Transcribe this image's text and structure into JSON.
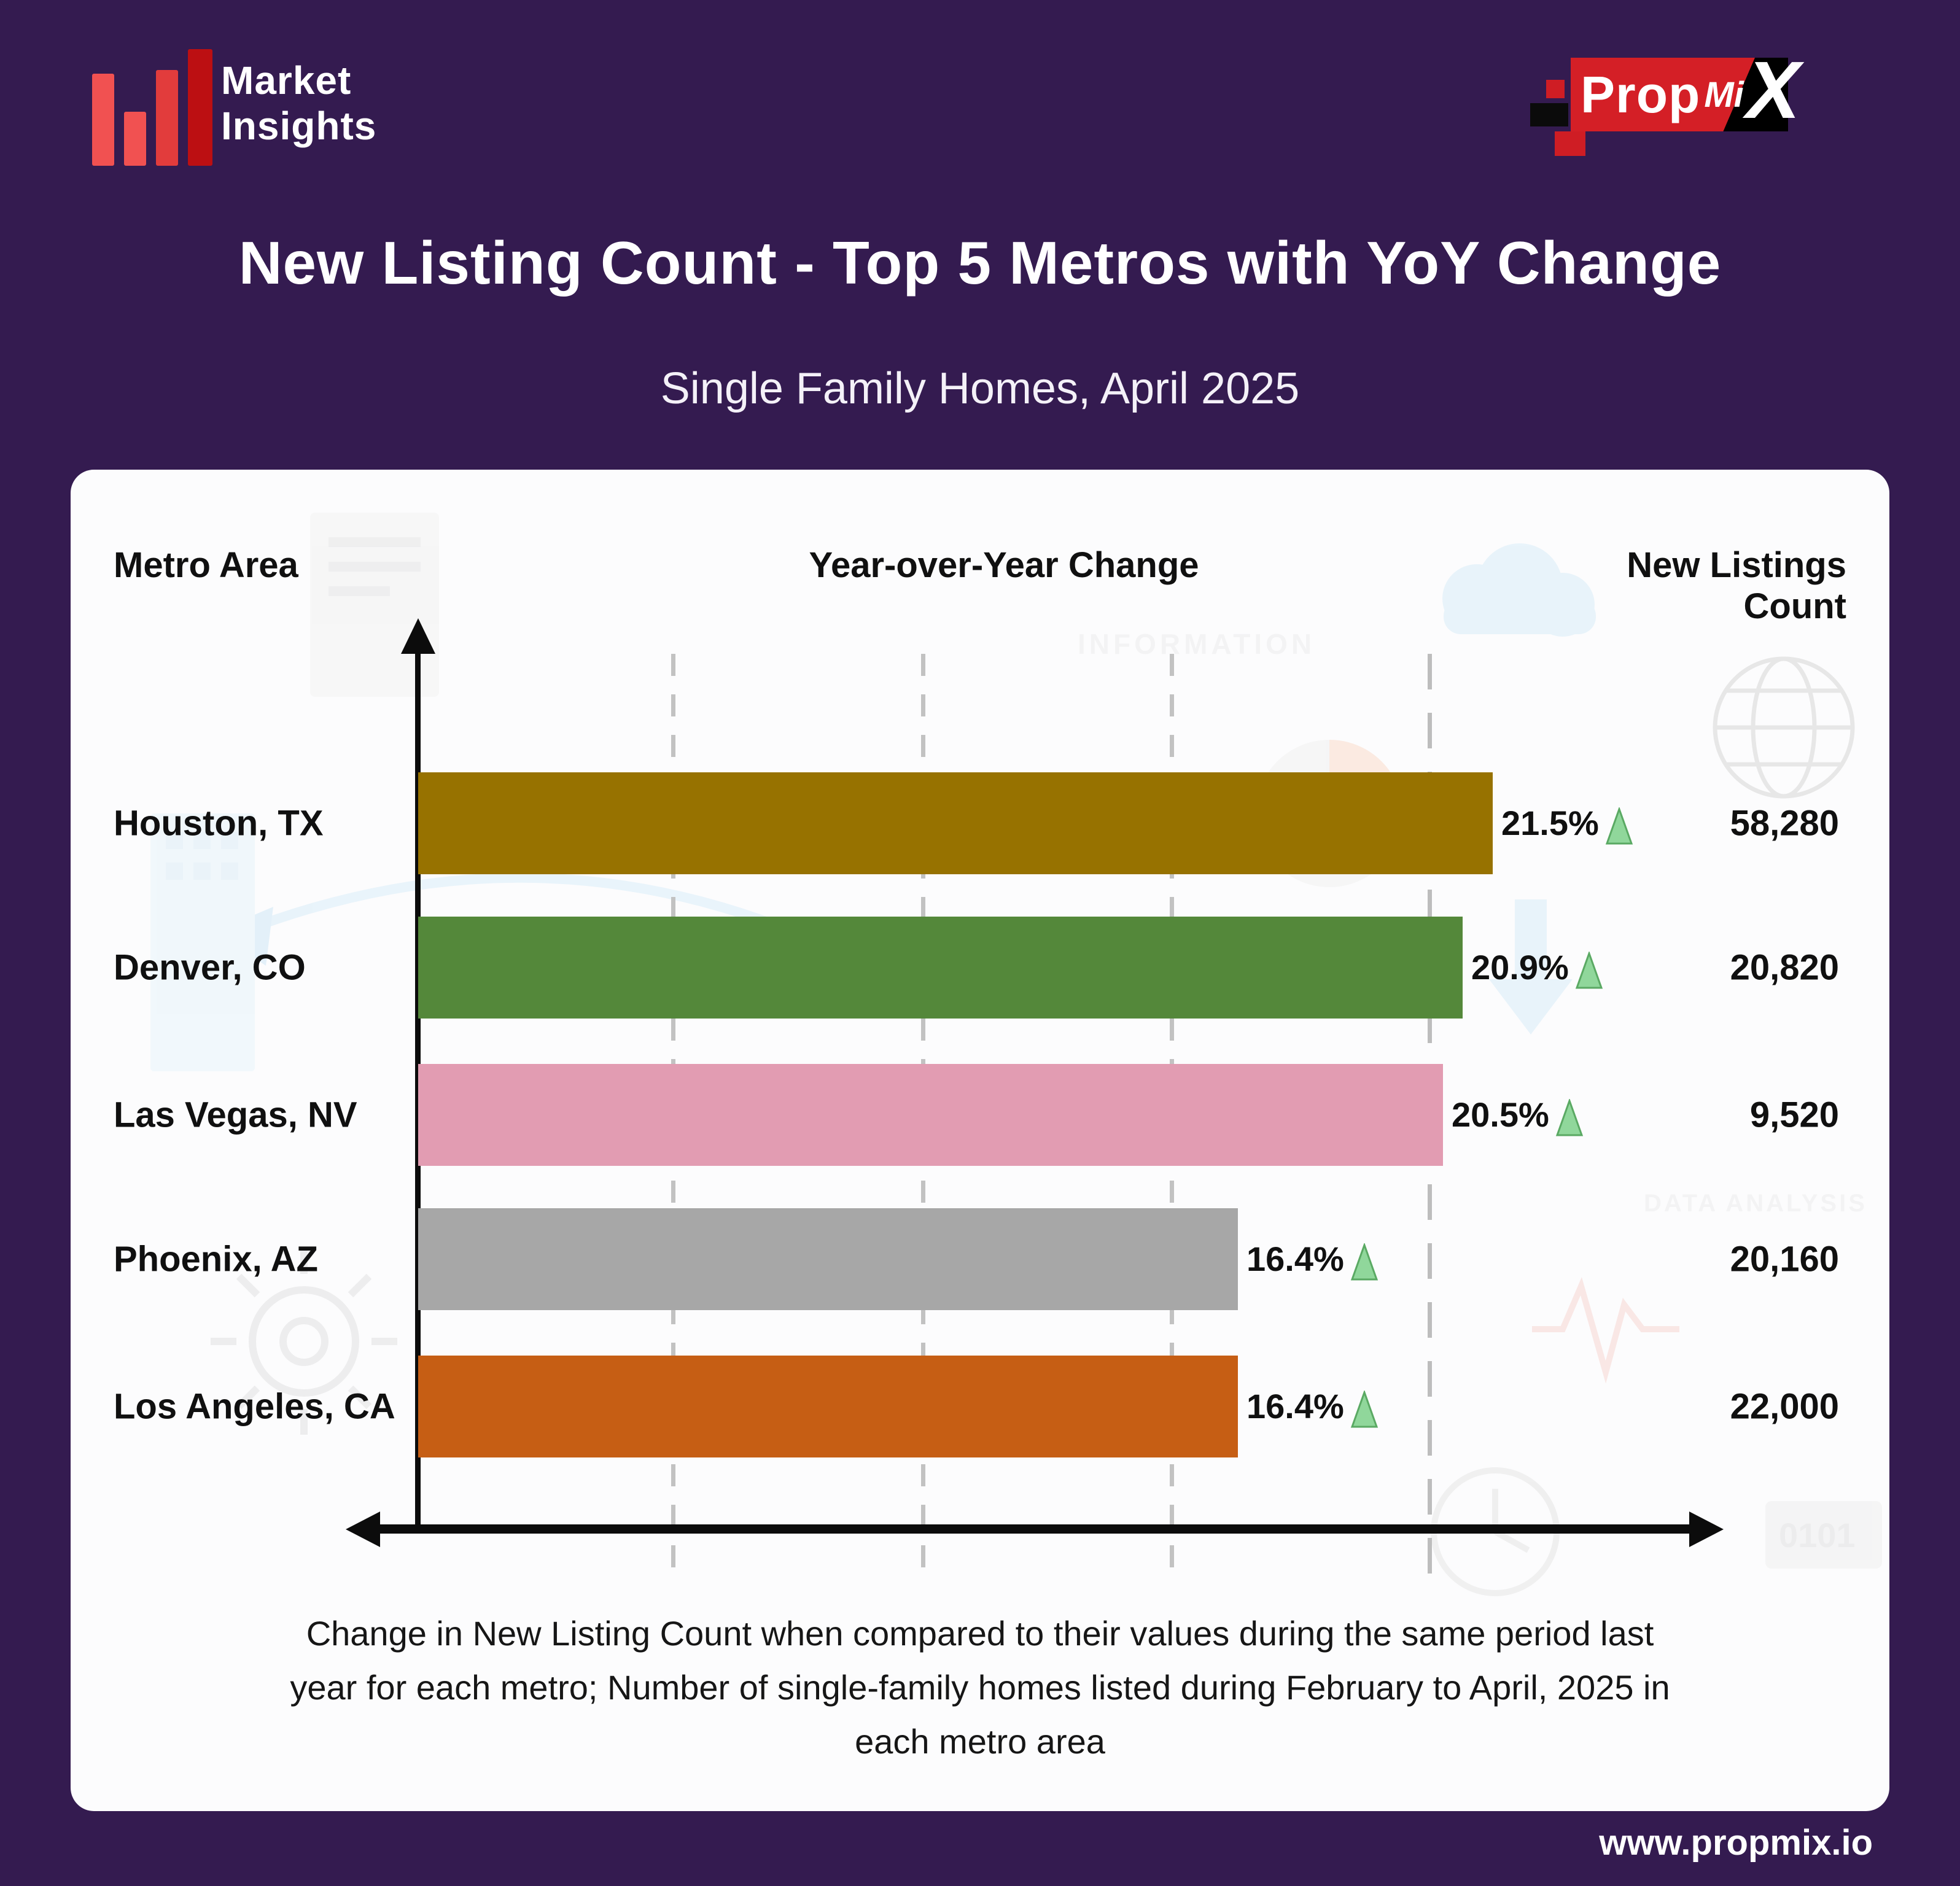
{
  "page": {
    "background_color": "#341b50",
    "footer_url": "www.propmix.io"
  },
  "header": {
    "brand": {
      "line1": "Market",
      "line2": "Insights"
    },
    "propmix_logo": {
      "prop": "Prop",
      "mi": "Mi",
      "x": "X"
    },
    "title": "New Listing Count - Top 5 Metros with YoY Change",
    "subtitle": "Single Family Homes, April 2025"
  },
  "chart_card": {
    "columns": {
      "metro": "Metro Area",
      "yoy": "Year-over-Year Change",
      "count": "New Listings Count"
    },
    "caption": "Change in New Listing Count when compared to their values during the same period last year for each metro; Number of single-family homes listed during February to April, 2025 in each metro area",
    "watermark_labels": {
      "label1": "INFORMATION",
      "label2": "DATA ANALYSIS"
    }
  },
  "chart_data": {
    "type": "bar",
    "orientation": "horizontal",
    "title": "New Listing Count - Top 5 Metros with YoY Change",
    "subtitle": "Single Family Homes, April 2025",
    "bar_length_encodes": "yoy_percent",
    "grid": "dashed-vertical",
    "legend": "none",
    "trend_icon_fill": "#90d79b",
    "trend_icon_stroke": "#5aa963",
    "categories": [
      "Houston, TX",
      "Denver, CO",
      "Las Vegas, NV",
      "Phoenix, AZ",
      "Los Angeles, CA"
    ],
    "series": [
      {
        "name": "Year-over-Year Change (%)",
        "values": [
          21.5,
          20.9,
          20.5,
          16.4,
          16.4
        ]
      },
      {
        "name": "New Listings Count",
        "values": [
          58280,
          20820,
          9520,
          20160,
          22000
        ]
      }
    ],
    "rows": [
      {
        "metro": "Houston, TX",
        "yoy_label": "21.5%",
        "yoy_value": 21.5,
        "direction": "up",
        "count_label": "58,280",
        "count_value": 58280,
        "bar_color": "#977200"
      },
      {
        "metro": "Denver, CO",
        "yoy_label": "20.9%",
        "yoy_value": 20.9,
        "direction": "up",
        "count_label": "20,820",
        "count_value": 20820,
        "bar_color": "#54883a"
      },
      {
        "metro": "Las Vegas, NV",
        "yoy_label": "20.5%",
        "yoy_value": 20.5,
        "direction": "up",
        "count_label": "9,520",
        "count_value": 9520,
        "bar_color": "#e29cb2"
      },
      {
        "metro": "Phoenix, AZ",
        "yoy_label": "16.4%",
        "yoy_value": 16.4,
        "direction": "up",
        "count_label": "20,160",
        "count_value": 20160,
        "bar_color": "#a7a7a7"
      },
      {
        "metro": "Los Angeles, CA",
        "yoy_label": "16.4%",
        "yoy_value": 16.4,
        "direction": "up",
        "count_label": "22,000",
        "count_value": 22000,
        "bar_color": "#c65e14"
      }
    ]
  }
}
